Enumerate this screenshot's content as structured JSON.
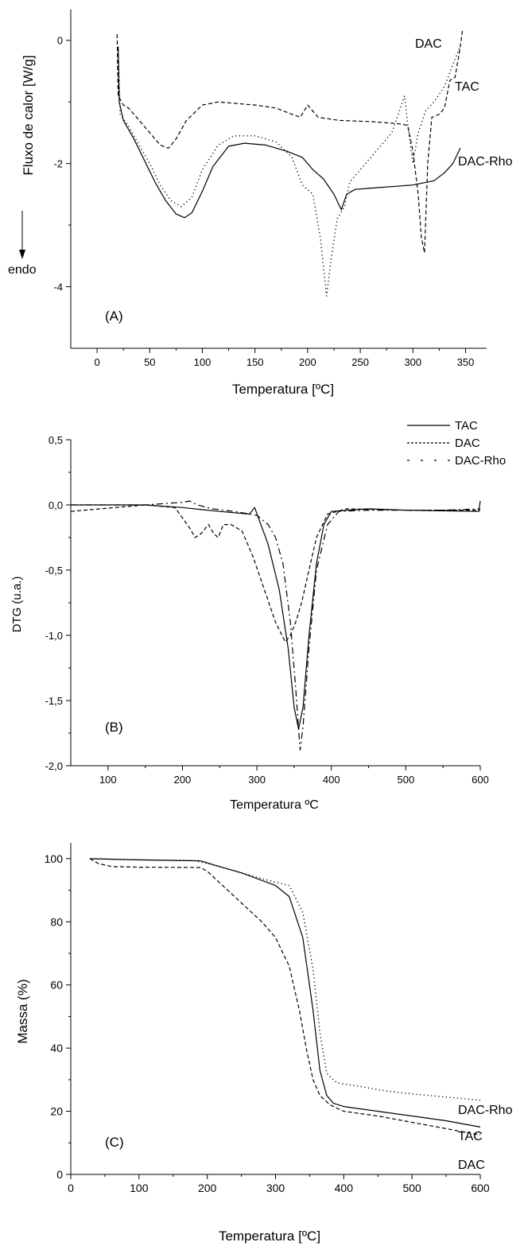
{
  "chart_data": [
    {
      "type": "line",
      "panel_label": "(A)",
      "xlabel": "Temperatura [ºC]",
      "ylabel": "Fluxo de calor [W/g]",
      "annotation": "endo",
      "xlim": [
        -25,
        370
      ],
      "ylim": [
        -5,
        0.5
      ],
      "xticks": [
        0,
        50,
        100,
        150,
        200,
        250,
        300,
        350
      ],
      "yticks": [
        -4,
        -2,
        0
      ],
      "grid": false,
      "legend": "inline labels at curve ends",
      "series": [
        {
          "name": "DAC",
          "style": "dashed",
          "label_x": 270,
          "label_y": 0.2,
          "points": [
            [
              19,
              0.1
            ],
            [
              20,
              -0.9
            ],
            [
              25,
              -1.05
            ],
            [
              30,
              -1.1
            ],
            [
              40,
              -1.3
            ],
            [
              50,
              -1.5
            ],
            [
              60,
              -1.7
            ],
            [
              68,
              -1.75
            ],
            [
              75,
              -1.6
            ],
            [
              85,
              -1.3
            ],
            [
              100,
              -1.05
            ],
            [
              115,
              -1.0
            ],
            [
              150,
              -1.05
            ],
            [
              170,
              -1.1
            ],
            [
              185,
              -1.2
            ],
            [
              193,
              -1.25
            ],
            [
              200,
              -1.05
            ],
            [
              205,
              -1.15
            ],
            [
              210,
              -1.25
            ],
            [
              230,
              -1.3
            ],
            [
              260,
              -1.32
            ],
            [
              285,
              -1.35
            ],
            [
              295,
              -1.38
            ],
            [
              300,
              -1.8
            ],
            [
              305,
              -2.5
            ],
            [
              308,
              -3.2
            ],
            [
              311,
              -3.45
            ],
            [
              314,
              -2.0
            ],
            [
              318,
              -1.25
            ],
            [
              325,
              -1.2
            ],
            [
              330,
              -1.1
            ],
            [
              335,
              -0.65
            ],
            [
              340,
              -0.6
            ],
            [
              343,
              -0.3
            ],
            [
              345,
              -0.1
            ],
            [
              347,
              0.15
            ]
          ]
        },
        {
          "name": "TAC",
          "style": "dotted",
          "label_x": 340,
          "label_y": -0.75,
          "points": [
            [
              20,
              -0.1
            ],
            [
              22,
              -1.2
            ],
            [
              30,
              -1.4
            ],
            [
              40,
              -1.7
            ],
            [
              50,
              -2.0
            ],
            [
              60,
              -2.35
            ],
            [
              70,
              -2.6
            ],
            [
              80,
              -2.7
            ],
            [
              90,
              -2.55
            ],
            [
              100,
              -2.1
            ],
            [
              115,
              -1.7
            ],
            [
              130,
              -1.55
            ],
            [
              150,
              -1.55
            ],
            [
              170,
              -1.65
            ],
            [
              185,
              -1.9
            ],
            [
              195,
              -2.35
            ],
            [
              205,
              -2.5
            ],
            [
              212,
              -3.2
            ],
            [
              218,
              -4.15
            ],
            [
              222,
              -3.6
            ],
            [
              228,
              -2.9
            ],
            [
              235,
              -2.7
            ],
            [
              240,
              -2.3
            ],
            [
              260,
              -1.9
            ],
            [
              280,
              -1.5
            ],
            [
              288,
              -1.1
            ],
            [
              292,
              -0.9
            ],
            [
              296,
              -1.5
            ],
            [
              300,
              -2.0
            ],
            [
              305,
              -1.5
            ],
            [
              312,
              -1.15
            ],
            [
              320,
              -1.0
            ],
            [
              330,
              -0.75
            ],
            [
              340,
              -0.3
            ],
            [
              345,
              -0.1
            ]
          ]
        },
        {
          "name": "DAC-Rho",
          "style": "solid",
          "label_x": 350,
          "label_y": -2.0,
          "points": [
            [
              20,
              -0.1
            ],
            [
              21,
              -1.0
            ],
            [
              25,
              -1.3
            ],
            [
              35,
              -1.6
            ],
            [
              45,
              -1.95
            ],
            [
              55,
              -2.3
            ],
            [
              65,
              -2.6
            ],
            [
              75,
              -2.82
            ],
            [
              83,
              -2.88
            ],
            [
              90,
              -2.8
            ],
            [
              100,
              -2.45
            ],
            [
              110,
              -2.05
            ],
            [
              125,
              -1.72
            ],
            [
              140,
              -1.67
            ],
            [
              160,
              -1.7
            ],
            [
              180,
              -1.8
            ],
            [
              195,
              -1.9
            ],
            [
              205,
              -2.1
            ],
            [
              215,
              -2.25
            ],
            [
              225,
              -2.5
            ],
            [
              232,
              -2.75
            ],
            [
              237,
              -2.5
            ],
            [
              245,
              -2.42
            ],
            [
              260,
              -2.4
            ],
            [
              300,
              -2.35
            ],
            [
              320,
              -2.28
            ],
            [
              330,
              -2.15
            ],
            [
              338,
              -2.0
            ],
            [
              345,
              -1.75
            ]
          ]
        }
      ]
    },
    {
      "type": "line",
      "panel_label": "(B)",
      "xlabel": "Temperatura ºC",
      "ylabel": "DTG (u.a.)",
      "xlim": [
        50,
        600
      ],
      "ylim": [
        -2.0,
        0.5
      ],
      "xticks": [
        100,
        200,
        300,
        400,
        500,
        600
      ],
      "yticks": [
        0.5,
        0.0,
        -0.5,
        -1.0,
        -1.5,
        -2.0
      ],
      "ytick_labels": [
        "0,5",
        "0,0",
        "-0,5",
        "-1,0",
        "-1,5",
        "-2,0"
      ],
      "grid": false,
      "legend": "top-right",
      "series": [
        {
          "name": "TAC",
          "style": "solid",
          "points": [
            [
              50,
              0.0
            ],
            [
              150,
              0.0
            ],
            [
              200,
              -0.02
            ],
            [
              250,
              -0.05
            ],
            [
              290,
              -0.07
            ],
            [
              297,
              -0.02
            ],
            [
              302,
              -0.1
            ],
            [
              315,
              -0.3
            ],
            [
              330,
              -0.65
            ],
            [
              342,
              -1.1
            ],
            [
              350,
              -1.55
            ],
            [
              356,
              -1.72
            ],
            [
              362,
              -1.55
            ],
            [
              370,
              -1.0
            ],
            [
              380,
              -0.45
            ],
            [
              390,
              -0.15
            ],
            [
              400,
              -0.05
            ],
            [
              450,
              -0.03
            ],
            [
              500,
              -0.04
            ],
            [
              598,
              -0.05
            ],
            [
              600,
              0.03
            ]
          ]
        },
        {
          "name": "DAC",
          "style": "dashed",
          "points": [
            [
              50,
              -0.05
            ],
            [
              150,
              0.0
            ],
            [
              190,
              -0.02
            ],
            [
              200,
              -0.1
            ],
            [
              210,
              -0.18
            ],
            [
              217,
              -0.25
            ],
            [
              225,
              -0.22
            ],
            [
              235,
              -0.15
            ],
            [
              242,
              -0.22
            ],
            [
              248,
              -0.25
            ],
            [
              255,
              -0.15
            ],
            [
              265,
              -0.15
            ],
            [
              280,
              -0.2
            ],
            [
              295,
              -0.4
            ],
            [
              310,
              -0.65
            ],
            [
              325,
              -0.9
            ],
            [
              338,
              -1.05
            ],
            [
              345,
              -1.0
            ],
            [
              352,
              -0.9
            ],
            [
              360,
              -0.75
            ],
            [
              370,
              -0.5
            ],
            [
              380,
              -0.25
            ],
            [
              395,
              -0.07
            ],
            [
              420,
              -0.03
            ],
            [
              500,
              -0.04
            ],
            [
              600,
              -0.04
            ]
          ]
        },
        {
          "name": "DAC-Rho",
          "style": "dash-dot",
          "points": [
            [
              50,
              0.0
            ],
            [
              150,
              0.0
            ],
            [
              200,
              0.02
            ],
            [
              210,
              0.03
            ],
            [
              220,
              0.0
            ],
            [
              240,
              -0.03
            ],
            [
              270,
              -0.05
            ],
            [
              300,
              -0.08
            ],
            [
              315,
              -0.15
            ],
            [
              325,
              -0.25
            ],
            [
              335,
              -0.45
            ],
            [
              345,
              -0.9
            ],
            [
              352,
              -1.4
            ],
            [
              358,
              -1.88
            ],
            [
              362,
              -1.7
            ],
            [
              370,
              -1.1
            ],
            [
              380,
              -0.5
            ],
            [
              395,
              -0.15
            ],
            [
              410,
              -0.05
            ],
            [
              450,
              -0.04
            ],
            [
              550,
              -0.04
            ],
            [
              600,
              -0.03
            ]
          ]
        }
      ]
    },
    {
      "type": "line",
      "panel_label": "(C)",
      "xlabel": "Temperatura [ºC]",
      "ylabel": "Massa (%)",
      "xlim": [
        0,
        600
      ],
      "ylim": [
        0,
        105
      ],
      "xticks": [
        0,
        100,
        200,
        300,
        400,
        500,
        600
      ],
      "yticks": [
        0,
        20,
        40,
        60,
        80,
        100
      ],
      "grid": false,
      "legend": "inline labels at curve ends",
      "series": [
        {
          "name": "DAC-Rho",
          "style": "dotted",
          "points": [
            [
              28,
              100
            ],
            [
              100,
              99.6
            ],
            [
              180,
              99.4
            ],
            [
              200,
              98.5
            ],
            [
              250,
              95.5
            ],
            [
              300,
              92.5
            ],
            [
              320,
              91.5
            ],
            [
              340,
              83
            ],
            [
              355,
              65
            ],
            [
              365,
              45
            ],
            [
              375,
              32
            ],
            [
              390,
              29
            ],
            [
              420,
              28
            ],
            [
              460,
              26.5
            ],
            [
              500,
              25.5
            ],
            [
              550,
              24.5
            ],
            [
              600,
              23.5
            ]
          ]
        },
        {
          "name": "TAC",
          "style": "solid",
          "points": [
            [
              28,
              100
            ],
            [
              100,
              99.6
            ],
            [
              190,
              99.3
            ],
            [
              210,
              98
            ],
            [
              250,
              95.5
            ],
            [
              300,
              91.5
            ],
            [
              320,
              88
            ],
            [
              340,
              75
            ],
            [
              355,
              52
            ],
            [
              365,
              33
            ],
            [
              375,
              25
            ],
            [
              385,
              22.5
            ],
            [
              400,
              21.5
            ],
            [
              450,
              20
            ],
            [
              500,
              18.5
            ],
            [
              550,
              17
            ],
            [
              600,
              15
            ]
          ]
        },
        {
          "name": "DAC",
          "style": "dashed",
          "points": [
            [
              28,
              100
            ],
            [
              40,
              98.5
            ],
            [
              60,
              97.5
            ],
            [
              100,
              97.3
            ],
            [
              190,
              97.2
            ],
            [
              200,
              96
            ],
            [
              220,
              92
            ],
            [
              250,
              86
            ],
            [
              280,
              80
            ],
            [
              300,
              75
            ],
            [
              320,
              66
            ],
            [
              335,
              52
            ],
            [
              345,
              40
            ],
            [
              355,
              30
            ],
            [
              365,
              25
            ],
            [
              380,
              22
            ],
            [
              400,
              20
            ],
            [
              450,
              18.5
            ],
            [
              500,
              16.5
            ],
            [
              550,
              14.5
            ],
            [
              600,
              12.5
            ]
          ]
        }
      ]
    }
  ]
}
